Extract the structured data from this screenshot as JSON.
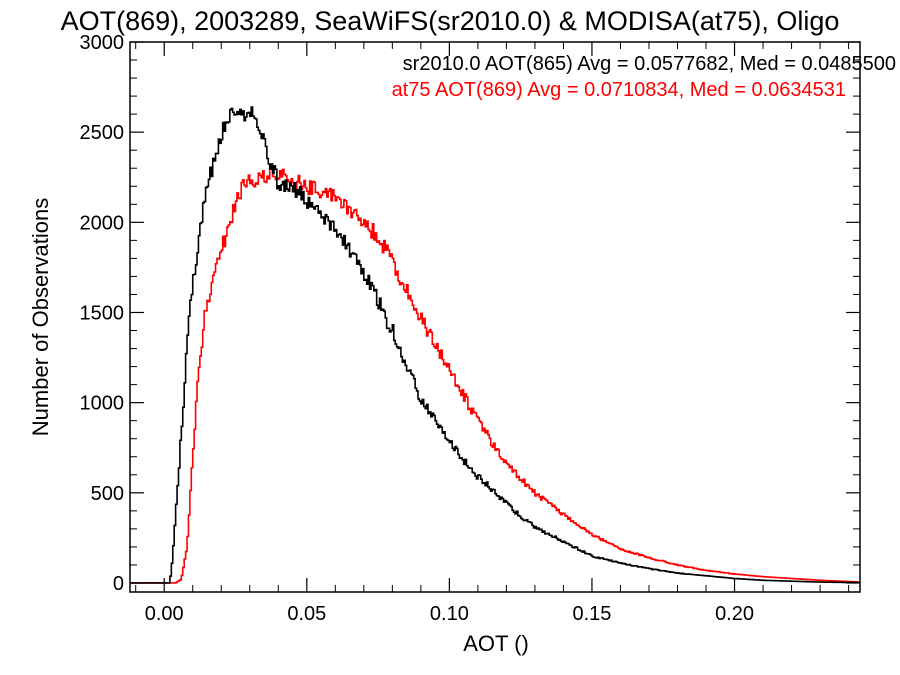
{
  "chart_data": {
    "type": "line",
    "title": "AOT(869), 2003289, SeaWiFS(sr2010.0) & MODISA(at75), Oligo",
    "xlabel": "AOT ()",
    "ylabel": "Number of Observations",
    "xlim": [
      -0.012,
      0.244
    ],
    "ylim": [
      -50,
      3000
    ],
    "x_ticks": [
      0.0,
      0.05,
      0.1,
      0.15,
      0.2
    ],
    "x_tick_labels": [
      "0.00",
      "0.05",
      "0.10",
      "0.15",
      "0.20"
    ],
    "y_ticks": [
      0,
      500,
      1000,
      1500,
      2000,
      2500,
      3000
    ],
    "y_tick_labels": [
      "0",
      "500",
      "1000",
      "1500",
      "2000",
      "2500",
      "3000"
    ],
    "grid": false,
    "legend_position": "top-right",
    "series": [
      {
        "name": "sr2010.0 AOT(865) Avg = 0.0577682, Med = 0.0485500",
        "color": "#000000",
        "points": [
          [
            -0.01,
            0
          ],
          [
            0.0,
            0
          ],
          [
            0.002,
            0
          ],
          [
            0.003,
            150
          ],
          [
            0.005,
            600
          ],
          [
            0.007,
            1050
          ],
          [
            0.008,
            1350
          ],
          [
            0.01,
            1650
          ],
          [
            0.012,
            1900
          ],
          [
            0.014,
            2100
          ],
          [
            0.016,
            2250
          ],
          [
            0.018,
            2350
          ],
          [
            0.02,
            2480
          ],
          [
            0.022,
            2580
          ],
          [
            0.024,
            2600
          ],
          [
            0.026,
            2620
          ],
          [
            0.028,
            2600
          ],
          [
            0.03,
            2630
          ],
          [
            0.032,
            2560
          ],
          [
            0.034,
            2480
          ],
          [
            0.036,
            2400
          ],
          [
            0.038,
            2300
          ],
          [
            0.04,
            2220
          ],
          [
            0.045,
            2200
          ],
          [
            0.05,
            2120
          ],
          [
            0.055,
            2050
          ],
          [
            0.06,
            1950
          ],
          [
            0.065,
            1850
          ],
          [
            0.07,
            1720
          ],
          [
            0.075,
            1560
          ],
          [
            0.08,
            1400
          ],
          [
            0.085,
            1200
          ],
          [
            0.09,
            1020
          ],
          [
            0.095,
            900
          ],
          [
            0.1,
            780
          ],
          [
            0.105,
            680
          ],
          [
            0.11,
            590
          ],
          [
            0.115,
            520
          ],
          [
            0.12,
            440
          ],
          [
            0.125,
            370
          ],
          [
            0.13,
            310
          ],
          [
            0.14,
            230
          ],
          [
            0.15,
            150
          ],
          [
            0.16,
            110
          ],
          [
            0.17,
            80
          ],
          [
            0.18,
            55
          ],
          [
            0.19,
            40
          ],
          [
            0.2,
            25
          ],
          [
            0.21,
            15
          ],
          [
            0.22,
            10
          ],
          [
            0.23,
            5
          ],
          [
            0.244,
            2
          ]
        ]
      },
      {
        "name": "at75 AOT(869) Avg = 0.0710834, Med = 0.0634531",
        "color": "#ff0000",
        "points": [
          [
            -0.01,
            0
          ],
          [
            0.004,
            0
          ],
          [
            0.006,
            20
          ],
          [
            0.008,
            200
          ],
          [
            0.01,
            700
          ],
          [
            0.012,
            1150
          ],
          [
            0.014,
            1450
          ],
          [
            0.016,
            1620
          ],
          [
            0.018,
            1720
          ],
          [
            0.02,
            1840
          ],
          [
            0.022,
            1950
          ],
          [
            0.024,
            2050
          ],
          [
            0.026,
            2150
          ],
          [
            0.028,
            2200
          ],
          [
            0.03,
            2220
          ],
          [
            0.032,
            2240
          ],
          [
            0.034,
            2260
          ],
          [
            0.036,
            2250
          ],
          [
            0.04,
            2260
          ],
          [
            0.045,
            2230
          ],
          [
            0.05,
            2200
          ],
          [
            0.055,
            2180
          ],
          [
            0.06,
            2150
          ],
          [
            0.065,
            2080
          ],
          [
            0.07,
            2000
          ],
          [
            0.075,
            1920
          ],
          [
            0.08,
            1780
          ],
          [
            0.085,
            1620
          ],
          [
            0.09,
            1480
          ],
          [
            0.095,
            1320
          ],
          [
            0.1,
            1180
          ],
          [
            0.105,
            1040
          ],
          [
            0.11,
            900
          ],
          [
            0.115,
            780
          ],
          [
            0.12,
            670
          ],
          [
            0.125,
            580
          ],
          [
            0.13,
            500
          ],
          [
            0.14,
            380
          ],
          [
            0.15,
            270
          ],
          [
            0.16,
            190
          ],
          [
            0.17,
            140
          ],
          [
            0.18,
            100
          ],
          [
            0.19,
            70
          ],
          [
            0.2,
            50
          ],
          [
            0.21,
            35
          ],
          [
            0.22,
            25
          ],
          [
            0.23,
            15
          ],
          [
            0.244,
            5
          ]
        ]
      }
    ]
  }
}
